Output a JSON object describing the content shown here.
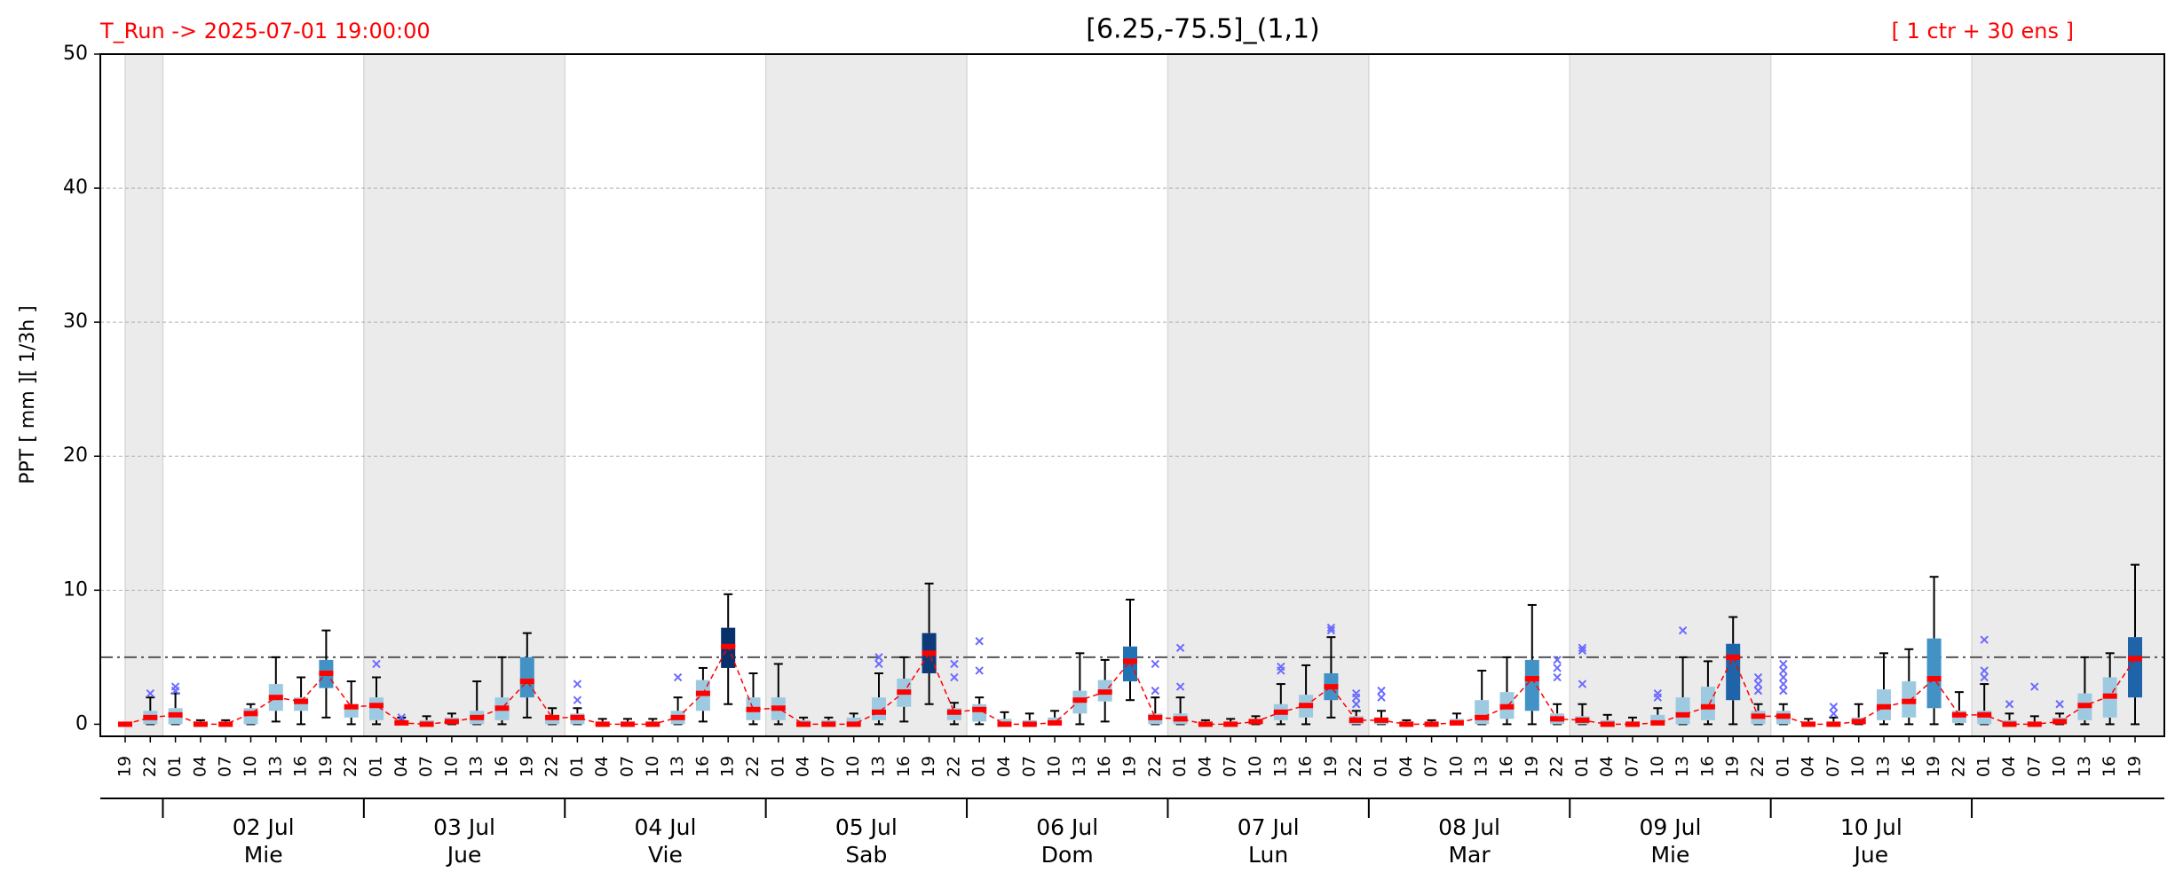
{
  "chart_data": {
    "type": "box",
    "title": "[6.25,-75.5]_(1,1)",
    "run_label": "T_Run -> 2025-07-01  19:00:00",
    "members_label": "[ 1 ctr + 30 ens ]",
    "ylabel": "PPT  [ mm ][ 1/3h ]",
    "ylim": [
      -0.9,
      50
    ],
    "yticks": [
      0,
      10,
      20,
      30,
      40,
      50
    ],
    "grid": true,
    "threshold": 5,
    "categories": [
      "19",
      "22",
      "01",
      "04",
      "07",
      "10",
      "13",
      "16",
      "19",
      "22",
      "01",
      "04",
      "07",
      "10",
      "13",
      "16",
      "19",
      "22",
      "01",
      "04",
      "07",
      "10",
      "13",
      "16",
      "19",
      "22",
      "01",
      "04",
      "07",
      "10",
      "13",
      "16",
      "19",
      "22",
      "01",
      "04",
      "07",
      "10",
      "13",
      "16",
      "19",
      "22",
      "01",
      "04",
      "07",
      "10",
      "13",
      "16",
      "19",
      "22",
      "01",
      "04",
      "07",
      "10",
      "13",
      "16",
      "19",
      "22",
      "01",
      "04",
      "07",
      "10",
      "13",
      "16",
      "19",
      "22",
      "01",
      "04",
      "07",
      "10",
      "13",
      "16",
      "19",
      "22",
      "01",
      "04",
      "07",
      "10",
      "13",
      "16",
      "19"
    ],
    "day_labels": [
      {
        "date": "02 Jul",
        "weekday": "Mie"
      },
      {
        "date": "03 Jul",
        "weekday": "Jue"
      },
      {
        "date": "04 Jul",
        "weekday": "Vie"
      },
      {
        "date": "05 Jul",
        "weekday": "Sab"
      },
      {
        "date": "06 Jul",
        "weekday": "Dom"
      },
      {
        "date": "07 Jul",
        "weekday": "Lun"
      },
      {
        "date": "08 Jul",
        "weekday": "Mar"
      },
      {
        "date": "09 Jul",
        "weekday": "Mie"
      },
      {
        "date": "10 Jul",
        "weekday": "Jue"
      }
    ],
    "median": [
      0,
      0.5,
      0.7,
      0,
      0,
      0.8,
      2,
      1.7,
      3.8,
      1.3,
      1.4,
      0.1,
      0,
      0.2,
      0.5,
      1.2,
      3.2,
      0.5,
      0.5,
      0,
      0,
      0,
      0.5,
      2.3,
      5.8,
      1.1,
      1.2,
      0,
      0,
      0,
      0.9,
      2.4,
      5.3,
      0.9,
      1.1,
      0,
      0,
      0.1,
      1.8,
      2.4,
      4.7,
      0.5,
      0.4,
      0,
      0,
      0.2,
      0.9,
      1.4,
      2.8,
      0.3,
      0.3,
      0,
      0,
      0.1,
      0.5,
      1.3,
      3.4,
      0.4,
      0.3,
      0,
      0,
      0.1,
      0.7,
      1.3,
      5,
      0.6,
      0.6,
      0,
      0,
      0.2,
      1.3,
      1.7,
      3.4,
      0.7,
      0.7,
      0,
      0,
      0.2,
      1.4,
      2.1,
      4.9
    ],
    "q1": [
      0,
      0,
      0,
      0,
      0,
      0,
      1,
      1,
      2.7,
      0.5,
      0.3,
      0,
      0,
      0,
      0,
      0.3,
      2,
      0,
      0,
      0,
      0,
      0,
      0,
      1,
      4.2,
      0.3,
      0.3,
      0,
      0,
      0,
      0.3,
      1.3,
      3.8,
      0.3,
      0.2,
      0,
      0,
      0,
      0.8,
      1.7,
      3.2,
      0,
      0,
      0,
      0,
      0,
      0.3,
      0.5,
      1.8,
      0,
      0,
      0,
      0,
      0,
      0,
      0.4,
      1,
      0,
      0,
      0,
      0,
      0,
      0,
      0.3,
      1.8,
      0,
      0,
      0,
      0,
      0,
      0.3,
      0.5,
      1.2,
      0.1,
      0,
      0,
      0,
      0,
      0.3,
      0.5,
      2
    ],
    "q3": [
      0,
      1,
      1.2,
      0.2,
      0.2,
      1.2,
      3,
      2,
      4.8,
      1.5,
      2,
      0.3,
      0.3,
      0.5,
      1,
      2,
      5,
      0.7,
      0.8,
      0.2,
      0.2,
      0.2,
      1,
      3.3,
      7.2,
      2,
      2,
      0.3,
      0.3,
      0.5,
      2,
      3.4,
      6.8,
      1.2,
      1.5,
      0.4,
      0.3,
      0.5,
      2.5,
      3.3,
      5.8,
      0.8,
      0.8,
      0.2,
      0.2,
      0.4,
      1.5,
      2.2,
      3.8,
      0.6,
      0.5,
      0.2,
      0.2,
      0.4,
      1.8,
      2.4,
      4.8,
      0.8,
      0.6,
      0.3,
      0.2,
      0.7,
      2,
      2.8,
      6,
      1,
      1,
      0.2,
      0.2,
      0.5,
      2.6,
      3.2,
      6.4,
      1,
      1,
      0.3,
      0.2,
      0.5,
      2.3,
      3.5,
      6.5
    ],
    "whisker_low": [
      0,
      0,
      0,
      0,
      0,
      0,
      0.2,
      0,
      0.5,
      0,
      0,
      0,
      0,
      0,
      0,
      0,
      0.5,
      0,
      0,
      0,
      0,
      0,
      0,
      0.2,
      1.5,
      0,
      0,
      0,
      0,
      0,
      0,
      0.2,
      1.5,
      0,
      0,
      0,
      0,
      0,
      0,
      0.2,
      1.8,
      0,
      0,
      0,
      0,
      0,
      0,
      0,
      0.5,
      0,
      0,
      0,
      0,
      0,
      0,
      0,
      0,
      0,
      0,
      0,
      0,
      0,
      0,
      0,
      0,
      0,
      0,
      0,
      0,
      0,
      0,
      0,
      0,
      0,
      0,
      0,
      0,
      0,
      0,
      0,
      0
    ],
    "whisker_high": [
      0,
      2,
      2.3,
      0.3,
      0.3,
      1.5,
      5,
      3.5,
      7,
      3.2,
      3.5,
      0.5,
      0.6,
      0.8,
      3.2,
      5,
      6.8,
      1.2,
      1.2,
      0.4,
      0.4,
      0.4,
      2,
      4.2,
      9.7,
      3.8,
      4.5,
      0.5,
      0.5,
      0.8,
      3.8,
      5,
      10.5,
      1.6,
      2,
      0.9,
      0.8,
      1,
      5.3,
      4.8,
      9.3,
      2,
      2,
      0.3,
      0.4,
      0.6,
      3,
      4.4,
      6.5,
      1,
      1,
      0.3,
      0.3,
      0.8,
      4,
      5,
      8.9,
      1.5,
      1.5,
      0.7,
      0.5,
      1.2,
      5,
      4.7,
      8,
      1.5,
      1.5,
      0.4,
      0.5,
      1.5,
      5.3,
      5.6,
      11,
      2.4,
      3,
      0.8,
      0.6,
      0.8,
      5,
      5.3,
      11.9
    ],
    "outliers": [
      [],
      [
        2.3
      ],
      [
        2.5,
        2.8
      ],
      [],
      [],
      [],
      [],
      [],
      [],
      [],
      [
        4.5
      ],
      [
        0.5
      ],
      [],
      [],
      [],
      [],
      [],
      [],
      [
        3,
        1.8
      ],
      [],
      [],
      [],
      [
        3.5
      ],
      [],
      [],
      [],
      [],
      [],
      [],
      [],
      [
        4.5,
        5
      ],
      [],
      [],
      [
        3.5,
        4.5
      ],
      [
        4,
        6.2
      ],
      [],
      [],
      [],
      [],
      [],
      [],
      [
        2.5,
        4.5
      ],
      [
        2.8,
        5.7
      ],
      [],
      [],
      [],
      [
        4,
        4.3
      ],
      [],
      [
        7,
        7.2
      ],
      [
        1.5,
        2,
        2.3
      ],
      [
        2,
        2.5
      ],
      [],
      [],
      [],
      [],
      [],
      [],
      [
        3.5,
        4.2,
        4.8
      ],
      [
        3,
        5.5,
        5.7
      ],
      [],
      [],
      [
        2,
        2.3
      ],
      [
        7
      ],
      [],
      [],
      [
        2.5,
        3,
        3.5
      ],
      [
        2.5,
        3,
        3.5,
        4,
        4.5
      ],
      [],
      [
        0.8,
        1.3
      ],
      [],
      [],
      [],
      [],
      [],
      [
        3.5,
        4,
        6.3
      ],
      [
        1.5
      ],
      [
        2.8
      ],
      [
        1.5
      ],
      [],
      [],
      []
    ],
    "colors": [
      "#9ecae1",
      "#9ecae1",
      "#9ecae1",
      "#9ecae1",
      "#9ecae1",
      "#9ecae1",
      "#9ecae1",
      "#9ecae1",
      "#4292c6",
      "#9ecae1",
      "#9ecae1",
      "#9ecae1",
      "#9ecae1",
      "#9ecae1",
      "#9ecae1",
      "#9ecae1",
      "#4292c6",
      "#9ecae1",
      "#9ecae1",
      "#9ecae1",
      "#9ecae1",
      "#9ecae1",
      "#9ecae1",
      "#9ecae1",
      "#08306b",
      "#9ecae1",
      "#9ecae1",
      "#9ecae1",
      "#9ecae1",
      "#9ecae1",
      "#9ecae1",
      "#9ecae1",
      "#0d3b7a",
      "#9ecae1",
      "#9ecae1",
      "#9ecae1",
      "#9ecae1",
      "#9ecae1",
      "#9ecae1",
      "#9ecae1",
      "#2171b5",
      "#9ecae1",
      "#9ecae1",
      "#9ecae1",
      "#9ecae1",
      "#9ecae1",
      "#9ecae1",
      "#9ecae1",
      "#4292c6",
      "#9ecae1",
      "#9ecae1",
      "#9ecae1",
      "#9ecae1",
      "#9ecae1",
      "#9ecae1",
      "#9ecae1",
      "#4292c6",
      "#9ecae1",
      "#9ecae1",
      "#9ecae1",
      "#9ecae1",
      "#9ecae1",
      "#9ecae1",
      "#9ecae1",
      "#1f63a8",
      "#9ecae1",
      "#9ecae1",
      "#9ecae1",
      "#9ecae1",
      "#9ecae1",
      "#9ecae1",
      "#9ecae1",
      "#4292c6",
      "#9ecae1",
      "#9ecae1",
      "#9ecae1",
      "#9ecae1",
      "#9ecae1",
      "#9ecae1",
      "#9ecae1",
      "#1f63a8"
    ],
    "median_color": "#ff0000",
    "outlier_color": "#6b6bff"
  }
}
